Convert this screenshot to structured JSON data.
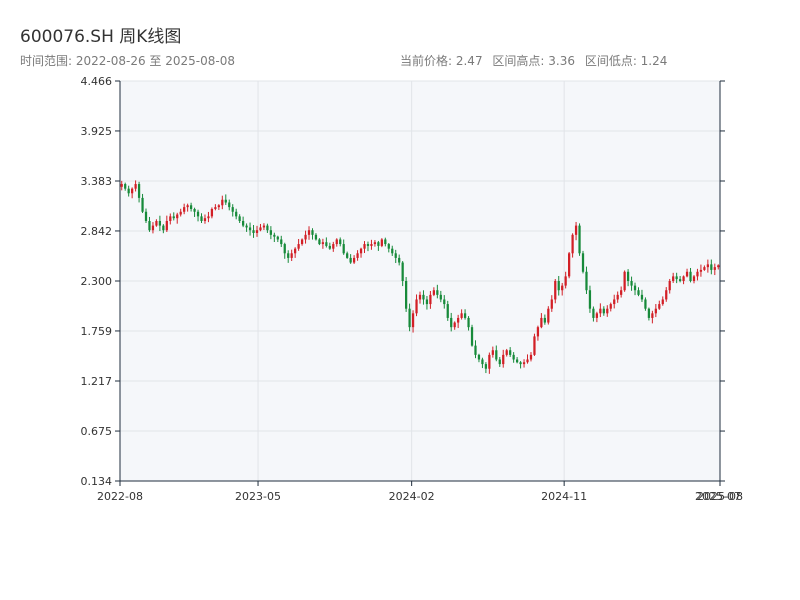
{
  "header": {
    "title": "600076.SH 周K线图",
    "range_label": "时间范围: 2022-08-26 至 2025-08-08",
    "current_price_label": "当前价格: 2.47",
    "range_high_label": "区间高点: 3.36",
    "range_low_label": "区间低点: 1.24"
  },
  "colors": {
    "up": "#d21f26",
    "down": "#178a3a",
    "plot_bg": "#f5f7fa",
    "grid": "#e1e4e8",
    "axis": "#1f2d3d"
  },
  "chart_data": {
    "type": "candlestick",
    "x_ticks": [
      "2022-08",
      "2023-05",
      "2024-02",
      "2024-11",
      "2025-08"
    ],
    "x_tick_overlap_label": "2025-07",
    "y_ticks": [
      "4.466",
      "3.925",
      "3.383",
      "2.842",
      "2.300",
      "1.759",
      "1.217",
      "0.675",
      "0.134"
    ],
    "ylim": [
      0.134,
      4.466
    ],
    "grid": true,
    "date_range": [
      "2022-08-26",
      "2025-08-08"
    ],
    "current_price": 2.47,
    "range_high": 3.36,
    "range_low": 1.24,
    "weekly_close_approx": [
      3.35,
      3.3,
      3.25,
      3.3,
      3.35,
      3.2,
      3.05,
      2.95,
      2.85,
      2.9,
      2.95,
      2.9,
      2.85,
      2.95,
      3.0,
      2.98,
      3.02,
      3.05,
      3.1,
      3.12,
      3.08,
      3.05,
      3.0,
      2.95,
      2.98,
      3.0,
      3.08,
      3.1,
      3.12,
      3.18,
      3.15,
      3.1,
      3.05,
      3.0,
      2.95,
      2.9,
      2.88,
      2.85,
      2.82,
      2.85,
      2.88,
      2.9,
      2.85,
      2.8,
      2.78,
      2.75,
      2.7,
      2.6,
      2.55,
      2.6,
      2.65,
      2.7,
      2.75,
      2.8,
      2.85,
      2.8,
      2.75,
      2.7,
      2.72,
      2.68,
      2.65,
      2.7,
      2.75,
      2.7,
      2.6,
      2.55,
      2.5,
      2.55,
      2.6,
      2.65,
      2.7,
      2.68,
      2.7,
      2.72,
      2.68,
      2.75,
      2.7,
      2.65,
      2.6,
      2.55,
      2.5,
      2.3,
      2.0,
      1.8,
      1.95,
      2.1,
      2.15,
      2.1,
      2.05,
      2.15,
      2.2,
      2.15,
      2.1,
      2.05,
      1.9,
      1.8,
      1.85,
      1.9,
      1.95,
      1.9,
      1.8,
      1.6,
      1.5,
      1.45,
      1.4,
      1.35,
      1.5,
      1.55,
      1.45,
      1.4,
      1.5,
      1.55,
      1.5,
      1.45,
      1.42,
      1.4,
      1.42,
      1.45,
      1.5,
      1.7,
      1.8,
      1.9,
      1.85,
      2.0,
      2.1,
      2.3,
      2.2,
      2.25,
      2.35,
      2.6,
      2.8,
      2.9,
      2.6,
      2.4,
      2.2,
      2.0,
      1.9,
      1.95,
      2.0,
      1.95,
      2.0,
      2.05,
      2.1,
      2.15,
      2.2,
      2.4,
      2.3,
      2.25,
      2.2,
      2.15,
      2.1,
      2.0,
      1.9,
      1.95,
      2.0,
      2.05,
      2.1,
      2.2,
      2.3,
      2.35,
      2.32,
      2.3,
      2.35,
      2.4,
      2.3,
      2.35,
      2.4,
      2.42,
      2.45,
      2.48,
      2.42,
      2.45,
      2.47
    ]
  }
}
